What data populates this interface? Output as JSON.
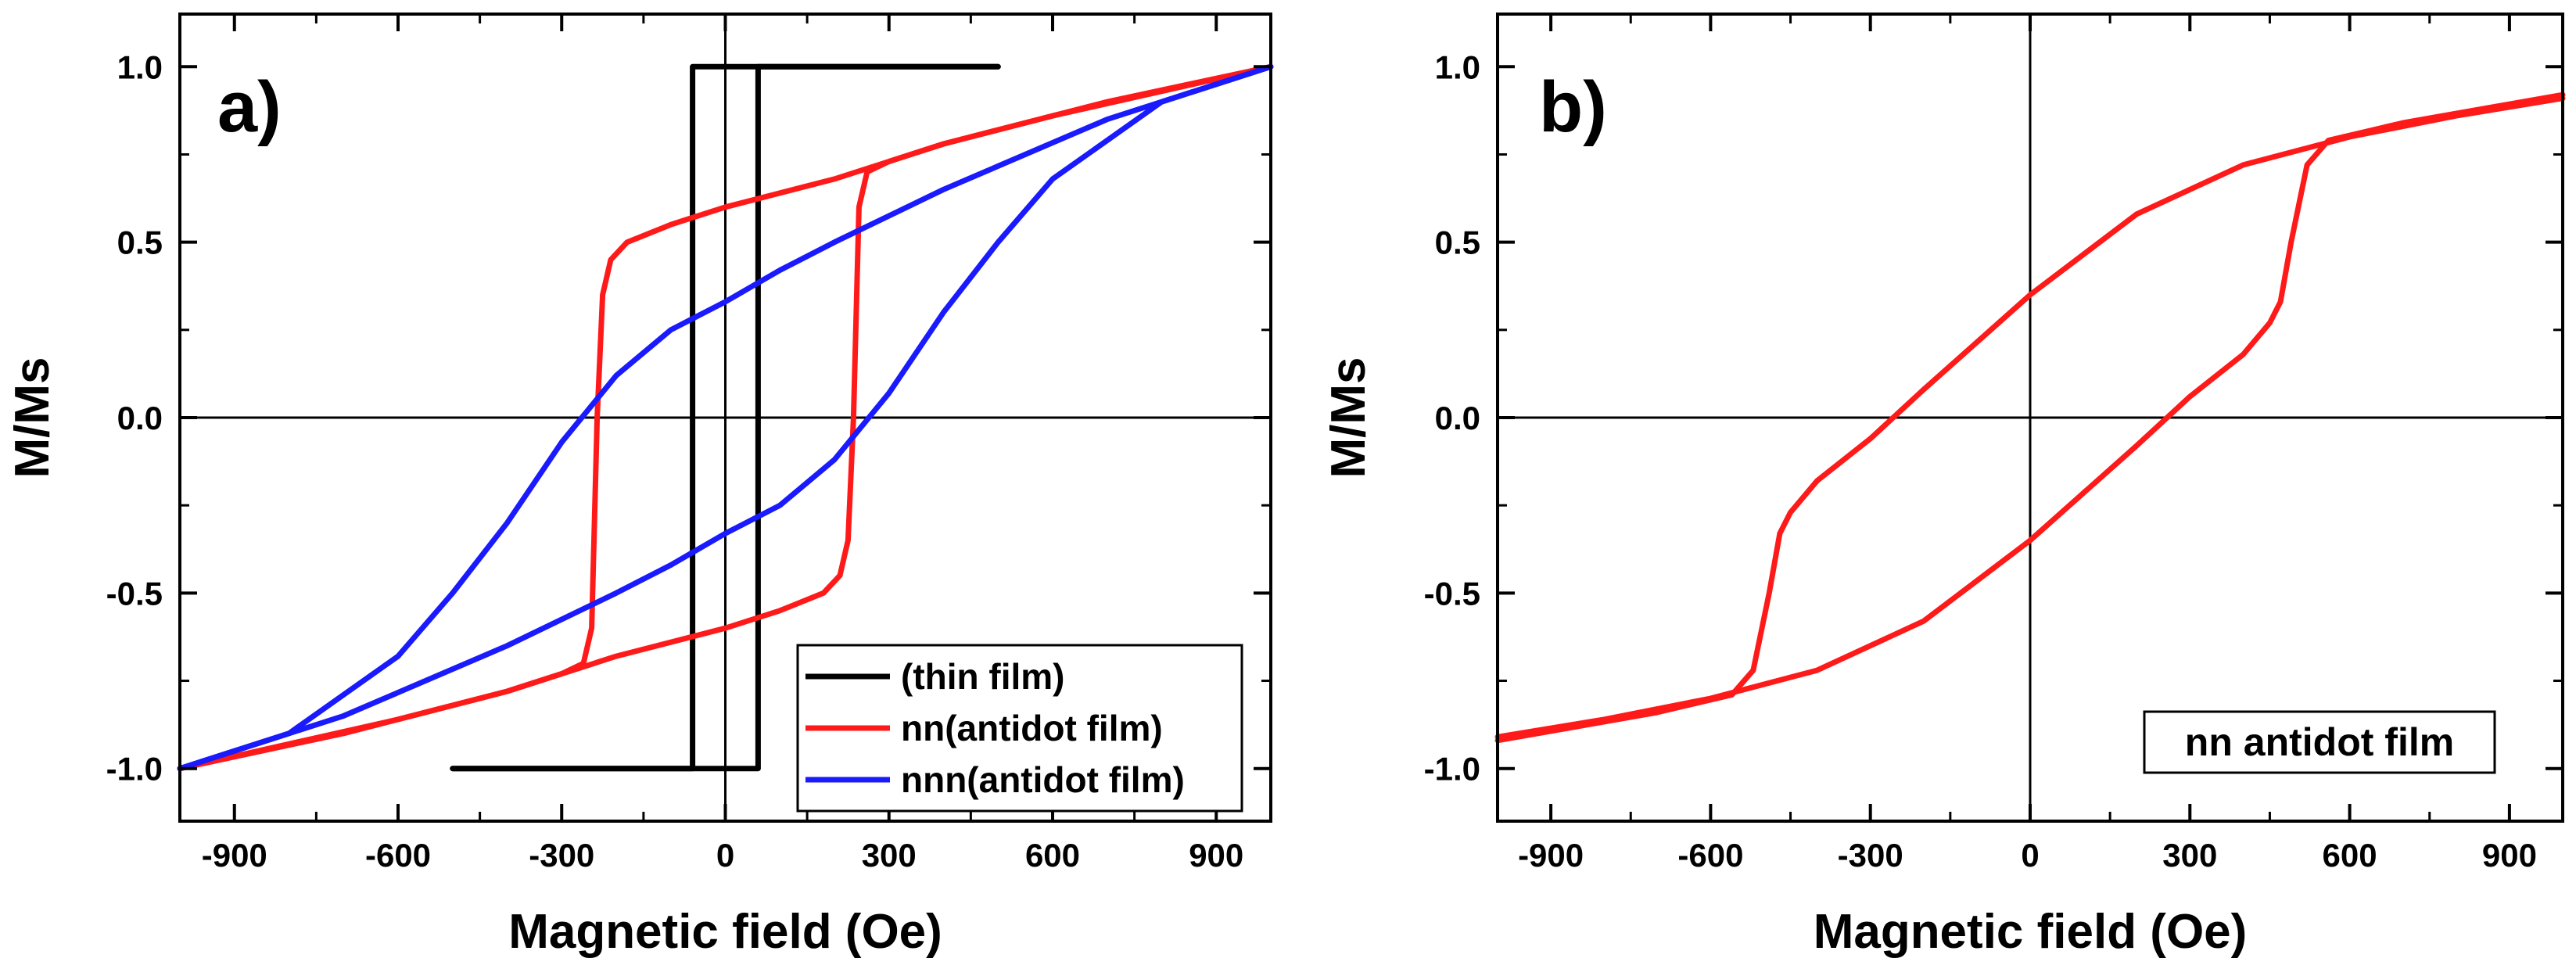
{
  "chart_data": [
    {
      "type": "line",
      "panel_label": "a)",
      "xlabel": "Magnetic field (Oe)",
      "ylabel": "M/Ms",
      "xlim": [
        -1000,
        1000
      ],
      "ylim": [
        -1.15,
        1.15
      ],
      "xticks": [
        -900,
        -600,
        -300,
        0,
        300,
        600,
        900
      ],
      "xtick_labels": [
        "-900",
        "-600",
        "-300",
        "0",
        "300",
        "600",
        "900"
      ],
      "yticks": [
        -1.0,
        -0.5,
        0.0,
        0.5,
        1.0
      ],
      "ytick_labels": [
        "-1.0",
        "-0.5",
        "0.0",
        "0.5",
        "1.0"
      ],
      "zero_lines": true,
      "legend_position": "bottom-right",
      "series": [
        {
          "name": "(thin film)",
          "color": "#000000",
          "branches": [
            {
              "x": [
                500,
                -60,
                -60,
                -500
              ],
              "y": [
                1.0,
                1.0,
                -1.0,
                -1.0
              ]
            },
            {
              "x": [
                -500,
                60,
                60,
                500
              ],
              "y": [
                -1.0,
                -1.0,
                1.0,
                1.0
              ]
            }
          ]
        },
        {
          "name": "nn(antidot film)",
          "color": "#ff1a1a",
          "branches": [
            {
              "x": [
                1000,
                700,
                400,
                200,
                0,
                -100,
                -180,
                -210,
                -225,
                -235,
                -245,
                -260,
                -300,
                -400,
                -600,
                -800,
                -1000
              ],
              "y": [
                1.0,
                0.9,
                0.78,
                0.68,
                0.6,
                0.55,
                0.5,
                0.45,
                0.35,
                0.0,
                -0.6,
                -0.7,
                -0.73,
                -0.78,
                -0.86,
                -0.93,
                -1.0
              ]
            },
            {
              "x": [
                -1000,
                -700,
                -400,
                -200,
                0,
                100,
                180,
                210,
                225,
                235,
                245,
                260,
                300,
                400,
                600,
                800,
                1000
              ],
              "y": [
                -1.0,
                -0.9,
                -0.78,
                -0.68,
                -0.6,
                -0.55,
                -0.5,
                -0.45,
                -0.35,
                0.0,
                0.6,
                0.7,
                0.73,
                0.78,
                0.86,
                0.93,
                1.0
              ]
            }
          ]
        },
        {
          "name": "nnn(antidot film)",
          "color": "#1a1aff",
          "branches": [
            {
              "x": [
                1000,
                700,
                400,
                200,
                100,
                0,
                -100,
                -200,
                -300,
                -400,
                -500,
                -600,
                -800,
                -1000
              ],
              "y": [
                1.0,
                0.85,
                0.65,
                0.5,
                0.42,
                0.33,
                0.25,
                0.12,
                -0.07,
                -0.3,
                -0.5,
                -0.68,
                -0.9,
                -1.0
              ]
            },
            {
              "x": [
                -1000,
                -700,
                -400,
                -200,
                -100,
                0,
                100,
                200,
                300,
                400,
                500,
                600,
                800,
                1000
              ],
              "y": [
                -1.0,
                -0.85,
                -0.65,
                -0.5,
                -0.42,
                -0.33,
                -0.25,
                -0.12,
                0.07,
                0.3,
                0.5,
                0.68,
                0.9,
                1.0
              ]
            }
          ]
        }
      ]
    },
    {
      "type": "line",
      "panel_label": "b)",
      "xlabel": "Magnetic field (Oe)",
      "ylabel": "M/Ms",
      "xlim": [
        -1000,
        1000
      ],
      "ylim": [
        -1.15,
        1.15
      ],
      "xticks": [
        -900,
        -600,
        -300,
        0,
        300,
        600,
        900
      ],
      "xtick_labels": [
        "-900",
        "-600",
        "-300",
        "0",
        "300",
        "600",
        "900"
      ],
      "yticks": [
        -1.0,
        -0.5,
        0.0,
        0.5,
        1.0
      ],
      "ytick_labels": [
        "-1.0",
        "-0.5",
        "0.0",
        "0.5",
        "1.0"
      ],
      "zero_lines": true,
      "annotation": "nn antidot film",
      "series": [
        {
          "name": "nn antidot film",
          "color": "#ff1a1a",
          "branches": [
            {
              "x": [
                1000,
                800,
                600,
                400,
                200,
                0,
                -200,
                -300,
                -400,
                -450,
                -470,
                -490,
                -520,
                -560,
                -700,
                -850,
                -1000
              ],
              "y": [
                0.91,
                0.86,
                0.8,
                0.72,
                0.58,
                0.35,
                0.08,
                -0.06,
                -0.18,
                -0.27,
                -0.33,
                -0.5,
                -0.72,
                -0.79,
                -0.84,
                -0.88,
                -0.92
              ]
            },
            {
              "x": [
                -1000,
                -800,
                -600,
                -400,
                -200,
                0,
                200,
                300,
                400,
                450,
                470,
                490,
                520,
                560,
                700,
                850,
                1000
              ],
              "y": [
                -0.91,
                -0.86,
                -0.8,
                -0.72,
                -0.58,
                -0.35,
                -0.08,
                0.06,
                0.18,
                0.27,
                0.33,
                0.5,
                0.72,
                0.79,
                0.84,
                0.88,
                0.92
              ]
            }
          ]
        }
      ]
    }
  ]
}
